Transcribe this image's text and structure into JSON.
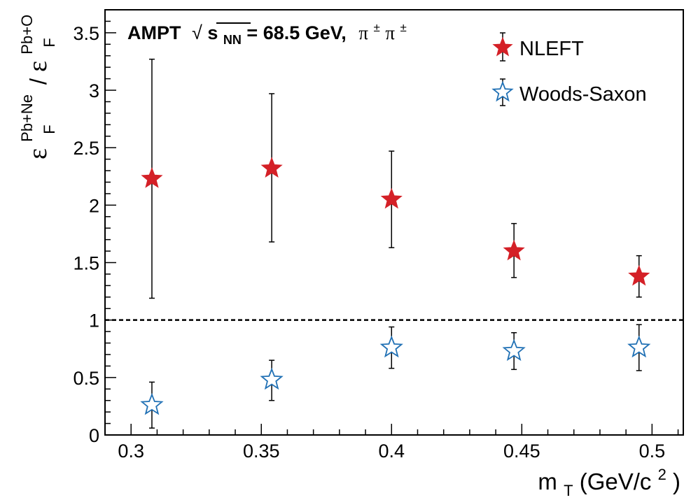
{
  "chart_data": {
    "type": "scatter",
    "header": {
      "generator": "AMPT",
      "energy_var": "s",
      "energy_sub": "NN",
      "energy_value": " = 68.5 GeV,",
      "particle": "π",
      "particle_sup": "±"
    },
    "xlabel": {
      "base": "m",
      "sub": "T",
      "unit_open": " (GeV/c",
      "unit_sup": "2",
      "unit_close": ")"
    },
    "ylabel": {
      "symbol": "ε",
      "sub": "F",
      "num_sup": "Pb+Ne",
      "den_sup": "Pb+O",
      "slash": "/"
    },
    "xlim": [
      0.29,
      0.512
    ],
    "ylim": [
      0,
      3.7
    ],
    "x_ticks": [
      "0.3",
      "0.35",
      "0.4",
      "0.45",
      "0.5"
    ],
    "x_tick_values": [
      0.3,
      0.35,
      0.4,
      0.45,
      0.5
    ],
    "y_ticks": [
      "0",
      "0.5",
      "1",
      "1.5",
      "2",
      "2.5",
      "3",
      "3.5"
    ],
    "y_tick_values": [
      0,
      0.5,
      1,
      1.5,
      2,
      2.5,
      3,
      3.5
    ],
    "reference_line": 1,
    "grid": false,
    "legend_position": "top-right",
    "series": [
      {
        "name": "NLEFT",
        "color": "#d42027",
        "marker": "filled-star",
        "points": [
          {
            "x": 0.308,
            "y": 2.23,
            "err_low": 1.04,
            "err_high": 1.04
          },
          {
            "x": 0.354,
            "y": 2.32,
            "err_low": 0.64,
            "err_high": 0.65
          },
          {
            "x": 0.4,
            "y": 2.05,
            "err_low": 0.42,
            "err_high": 0.42
          },
          {
            "x": 0.447,
            "y": 1.6,
            "err_low": 0.23,
            "err_high": 0.24
          },
          {
            "x": 0.495,
            "y": 1.38,
            "err_low": 0.18,
            "err_high": 0.18
          }
        ]
      },
      {
        "name": "Woods-Saxon",
        "color": "#2171b5",
        "marker": "open-star",
        "points": [
          {
            "x": 0.308,
            "y": 0.26,
            "err_low": 0.2,
            "err_high": 0.2
          },
          {
            "x": 0.354,
            "y": 0.48,
            "err_low": 0.18,
            "err_high": 0.17
          },
          {
            "x": 0.4,
            "y": 0.76,
            "err_low": 0.18,
            "err_high": 0.18
          },
          {
            "x": 0.447,
            "y": 0.73,
            "err_low": 0.16,
            "err_high": 0.16
          },
          {
            "x": 0.495,
            "y": 0.76,
            "err_low": 0.2,
            "err_high": 0.2
          }
        ]
      }
    ]
  }
}
